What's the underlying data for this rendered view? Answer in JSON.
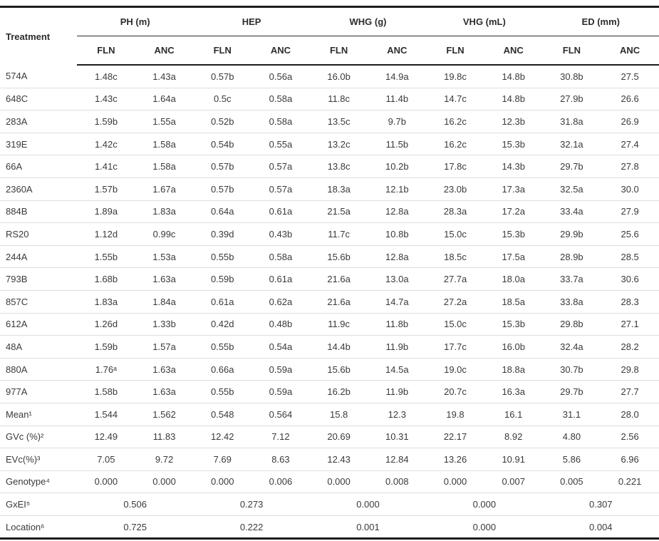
{
  "table": {
    "row_header_label": "Treatment",
    "groups": [
      {
        "label": "PH (m)"
      },
      {
        "label": "HEP"
      },
      {
        "label": "WHG (g)"
      },
      {
        "label": "VHG (mL)"
      },
      {
        "label": "ED (mm)"
      }
    ],
    "subheaders": [
      "FLN",
      "ANC",
      "FLN",
      "ANC",
      "FLN",
      "ANC",
      "FLN",
      "ANC",
      "FLN",
      "ANC"
    ],
    "rows": [
      {
        "label": "574A",
        "values": [
          "1.48c",
          "1.43a",
          "0.57b",
          "0.56a",
          "16.0b",
          "14.9a",
          "19.8c",
          "14.8b",
          "30.8b",
          "27.5"
        ]
      },
      {
        "label": "648C",
        "values": [
          "1.43c",
          "1.64a",
          "0.5c",
          "0.58a",
          "11.8c",
          "11.4b",
          "14.7c",
          "14.8b",
          "27.9b",
          "26.6"
        ]
      },
      {
        "label": "283A",
        "values": [
          "1.59b",
          "1.55a",
          "0.52b",
          "0.58a",
          "13.5c",
          "9.7b",
          "16.2c",
          "12.3b",
          "31.8a",
          "26.9"
        ]
      },
      {
        "label": "319E",
        "values": [
          "1.42c",
          "1.58a",
          "0.54b",
          "0.55a",
          "13.2c",
          "11.5b",
          "16.2c",
          "15.3b",
          "32.1a",
          "27.4"
        ]
      },
      {
        "label": "66A",
        "values": [
          "1.41c",
          "1.58a",
          "0.57b",
          "0.57a",
          "13.8c",
          "10.2b",
          "17.8c",
          "14.3b",
          "29.7b",
          "27.8"
        ]
      },
      {
        "label": "2360A",
        "values": [
          "1.57b",
          "1.67a",
          "0.57b",
          "0.57a",
          "18.3a",
          "12.1b",
          "23.0b",
          "17.3a",
          "32.5a",
          "30.0"
        ]
      },
      {
        "label": "884B",
        "values": [
          "1.89a",
          "1.83a",
          "0.64a",
          "0.61a",
          "21.5a",
          "12.8a",
          "28.3a",
          "17.2a",
          "33.4a",
          "27.9"
        ]
      },
      {
        "label": "RS20",
        "values": [
          "1.12d",
          "0.99c",
          "0.39d",
          "0.43b",
          "11.7c",
          "10.8b",
          "15.0c",
          "15.3b",
          "29.9b",
          "25.6"
        ]
      },
      {
        "label": "244A",
        "values": [
          "1.55b",
          "1.53a",
          "0.55b",
          "0.58a",
          "15.6b",
          "12.8a",
          "18.5c",
          "17.5a",
          "28.9b",
          "28.5"
        ]
      },
      {
        "label": "793B",
        "values": [
          "1.68b",
          "1.63a",
          "0.59b",
          "0.61a",
          "21.6a",
          "13.0a",
          "27.7a",
          "18.0a",
          "33.7a",
          "30.6"
        ]
      },
      {
        "label": "857C",
        "values": [
          "1.83a",
          "1.84a",
          "0.61a",
          "0.62a",
          "21.6a",
          "14.7a",
          "27.2a",
          "18.5a",
          "33.8a",
          "28.3"
        ]
      },
      {
        "label": "612A",
        "values": [
          "1.26d",
          "1.33b",
          "0.42d",
          "0.48b",
          "11.9c",
          "11.8b",
          "15.0c",
          "15.3b",
          "29.8b",
          "27.1"
        ]
      },
      {
        "label": "48A",
        "values": [
          "1.59b",
          "1.57a",
          "0.55b",
          "0.54a",
          "14.4b",
          "11.9b",
          "17.7c",
          "16.0b",
          "32.4a",
          "28.2"
        ]
      },
      {
        "label": "880A",
        "values": [
          "1.76ᵃ",
          "1.63a",
          "0.66a",
          "0.59a",
          "15.6b",
          "14.5a",
          "19.0c",
          "18.8a",
          "30.7b",
          "29.8"
        ]
      },
      {
        "label": "977A",
        "values": [
          "1.58b",
          "1.63a",
          "0.55b",
          "0.59a",
          "16.2b",
          "11.9b",
          "20.7c",
          "16.3a",
          "29.7b",
          "27.7"
        ]
      },
      {
        "label": "Mean¹",
        "values": [
          "1.544",
          "1.562",
          "0.548",
          "0.564",
          "15.8",
          "12.3",
          "19.8",
          "16.1",
          "31.1",
          "28.0"
        ]
      },
      {
        "label": "GVc (%)²",
        "values": [
          "12.49",
          "11.83",
          "12.42",
          "7.12",
          "20.69",
          "10.31",
          "22.17",
          "8.92",
          "4.80",
          "2.56"
        ]
      },
      {
        "label": "EVc(%)³",
        "values": [
          "7.05",
          "9.72",
          "7.69",
          "8.63",
          "12.43",
          "12.84",
          "13.26",
          "10.91",
          "5.86",
          "6.96"
        ]
      },
      {
        "label": "Genotype⁴",
        "values": [
          "0.000",
          "0.000",
          "0.000",
          "0.006",
          "0.000",
          "0.008",
          "0.000",
          "0.007",
          "0.005",
          "0.221"
        ]
      }
    ],
    "span_rows": [
      {
        "label": "GxEI⁵",
        "values": [
          "0.506",
          "0.273",
          "0.000",
          "0.000",
          "0.307"
        ]
      },
      {
        "label": "Location⁶",
        "values": [
          "0.725",
          "0.222",
          "0.001",
          "0.000",
          "0.004"
        ]
      }
    ]
  }
}
